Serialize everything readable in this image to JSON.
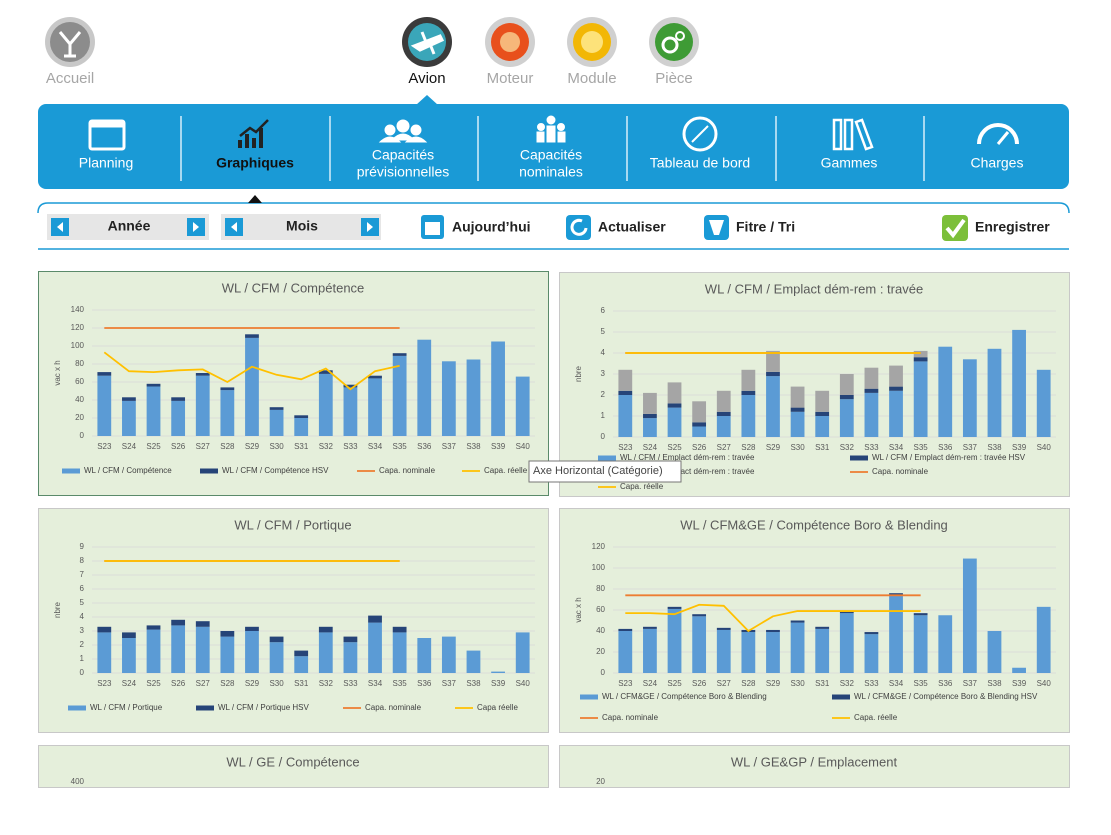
{
  "nav": [
    "Accueil",
    "Avion",
    "Moteur",
    "Module",
    "Pièce"
  ],
  "menu": [
    [
      "Planning"
    ],
    [
      "Graphiques"
    ],
    [
      "Capacités",
      "prévisionnelles"
    ],
    [
      "Capacités",
      "nominales"
    ],
    [
      "Tableau de bord"
    ],
    [
      "Gammes"
    ],
    [
      "Charges"
    ]
  ],
  "toolbar": {
    "year": "Année",
    "month": "Mois",
    "buttons": [
      "Aujourd’hui",
      "Actualiser",
      "Fitre / Tri",
      "Enregistrer"
    ]
  },
  "tooltip": "Axe Horizontal (Catégorie)",
  "chart_data": [
    {
      "type": "bar",
      "title": "WL / CFM / Compétence",
      "y_label": "vac x h",
      "categories": [
        "S23",
        "S24",
        "S25",
        "S26",
        "S27",
        "S28",
        "S29",
        "S30",
        "S31",
        "S32",
        "S33",
        "S34",
        "S35",
        "S36",
        "S37",
        "S38",
        "S39",
        "S40"
      ],
      "ylim": [
        0,
        140
      ],
      "yticks": [
        0,
        20,
        40,
        60,
        80,
        100,
        120,
        140
      ],
      "grid": true,
      "series": [
        {
          "name": "WL / CFM / Compétence",
          "kind": "bar",
          "color": "#5b9bd5",
          "values": [
            67,
            39,
            55,
            39,
            67,
            51,
            109,
            29,
            20,
            69,
            54,
            64,
            89,
            107,
            83,
            85,
            105,
            66
          ]
        },
        {
          "name": "WL / CFM / Compétence HSV",
          "kind": "bar",
          "color": "#264478",
          "values": [
            4,
            4,
            3,
            4,
            3,
            3,
            4,
            3,
            3,
            4,
            3,
            3,
            3,
            null,
            null,
            null,
            null,
            null
          ]
        },
        {
          "name": "Capa. nominale",
          "kind": "line",
          "color": "#ed7d31",
          "values": [
            120,
            120,
            120,
            120,
            120,
            120,
            120,
            120,
            120,
            120,
            120,
            120,
            120,
            null,
            null,
            null,
            null,
            null
          ]
        },
        {
          "name": "Capa. réelle",
          "kind": "line",
          "color": "#ffc000",
          "values": [
            93,
            72,
            71,
            73,
            74,
            60,
            77,
            68,
            63,
            75,
            52,
            72,
            78,
            null,
            null,
            null,
            null,
            null
          ]
        }
      ]
    },
    {
      "type": "bar",
      "title": "WL / CFM / Emplact dém-rem : travée",
      "y_label": "nbre",
      "categories": [
        "S23",
        "S24",
        "S25",
        "S26",
        "S27",
        "S28",
        "S29",
        "S30",
        "S31",
        "S32",
        "S33",
        "S34",
        "S35",
        "S36",
        "S37",
        "S38",
        "S39",
        "S40"
      ],
      "ylim": [
        0,
        6
      ],
      "yticks": [
        0,
        1,
        2,
        3,
        4,
        5,
        6
      ],
      "grid": true,
      "series": [
        {
          "name": "WL / CFM / Emplact dém-rem : travée",
          "kind": "bar",
          "color": "#5b9bd5",
          "values": [
            2.0,
            0.9,
            1.4,
            0.5,
            1.0,
            2.0,
            2.9,
            1.2,
            1.0,
            1.8,
            2.1,
            2.2,
            3.6,
            4.3,
            3.7,
            4.2,
            5.1,
            3.2
          ]
        },
        {
          "name": "WL / CFM / Emplact dém-rem : travée HSV",
          "kind": "bar",
          "color": "#264478",
          "values": [
            0.2,
            0.2,
            0.2,
            0.2,
            0.2,
            0.2,
            0.2,
            0.2,
            0.2,
            0.2,
            0.2,
            0.2,
            0.2,
            null,
            null,
            null,
            null,
            null
          ]
        },
        {
          "name": "WL / CFM / Emplact dém-rem : travée",
          "kind": "bar",
          "color": "#a5a5a5",
          "values": [
            1.0,
            1.0,
            1.0,
            1.0,
            1.0,
            1.0,
            1.0,
            1.0,
            1.0,
            1.0,
            1.0,
            1.0,
            0.3,
            null,
            null,
            null,
            null,
            null
          ]
        },
        {
          "name": "Capa. nominale",
          "kind": "line",
          "color": "#ed7d31",
          "values": [
            4,
            4,
            4,
            4,
            4,
            4,
            4,
            4,
            4,
            4,
            4,
            4,
            4,
            null,
            null,
            null,
            null,
            null
          ]
        },
        {
          "name": "Capa. réelle",
          "kind": "line",
          "color": "#ffc000",
          "values": [
            4,
            4,
            4,
            4,
            4,
            4,
            4,
            4,
            4,
            4,
            4,
            4,
            4,
            null,
            null,
            null,
            null,
            null
          ]
        }
      ]
    },
    {
      "type": "bar",
      "title": "WL / CFM / Portique",
      "y_label": "nbre",
      "categories": [
        "S23",
        "S24",
        "S25",
        "S26",
        "S27",
        "S28",
        "S29",
        "S30",
        "S31",
        "S32",
        "S33",
        "S34",
        "S35",
        "S36",
        "S37",
        "S38",
        "S39",
        "S40"
      ],
      "ylim": [
        0,
        9
      ],
      "yticks": [
        0,
        1,
        2,
        3,
        4,
        5,
        6,
        7,
        8,
        9
      ],
      "grid": true,
      "series": [
        {
          "name": "WL / CFM / Portique",
          "kind": "bar",
          "color": "#5b9bd5",
          "values": [
            2.9,
            2.5,
            3.1,
            3.4,
            3.3,
            2.6,
            3.0,
            2.2,
            1.2,
            2.9,
            2.2,
            3.6,
            2.9,
            2.5,
            2.6,
            1.6,
            0.1,
            2.9
          ]
        },
        {
          "name": "WL / CFM / Portique HSV",
          "kind": "bar",
          "color": "#264478",
          "values": [
            0.4,
            0.4,
            0.3,
            0.4,
            0.4,
            0.4,
            0.3,
            0.4,
            0.4,
            0.4,
            0.4,
            0.5,
            0.4,
            null,
            null,
            null,
            null,
            null
          ]
        },
        {
          "name": "Capa. nominale",
          "kind": "line",
          "color": "#ed7d31",
          "values": [
            8,
            8,
            8,
            8,
            8,
            8,
            8,
            8,
            8,
            8,
            8,
            8,
            8,
            null,
            null,
            null,
            null,
            null
          ]
        },
        {
          "name": "Capa réelle",
          "kind": "line",
          "color": "#ffc000",
          "values": [
            8,
            8,
            8,
            8,
            8,
            8,
            8,
            8,
            8,
            8,
            8,
            8,
            8,
            null,
            null,
            null,
            null,
            null
          ]
        }
      ]
    },
    {
      "type": "bar",
      "title": "WL / CFM&GE / Compétence Boro & Blending",
      "y_label": "vac x h",
      "categories": [
        "S23",
        "S24",
        "S25",
        "S26",
        "S27",
        "S28",
        "S29",
        "S30",
        "S31",
        "S32",
        "S33",
        "S34",
        "S35",
        "S36",
        "S37",
        "S38",
        "S39",
        "S40"
      ],
      "ylim": [
        0,
        120
      ],
      "yticks": [
        0,
        20,
        40,
        60,
        80,
        100,
        120
      ],
      "grid": true,
      "series": [
        {
          "name": "WL / CFM&GE / Compétence Boro & Blending",
          "kind": "bar",
          "color": "#5b9bd5",
          "values": [
            40,
            42,
            61,
            54,
            41,
            39,
            39,
            48,
            42,
            57,
            37,
            74,
            55,
            55,
            109,
            40,
            5,
            63
          ]
        },
        {
          "name": "WL / CFM&GE / Compétence Boro & Blending HSV",
          "kind": "bar",
          "color": "#264478",
          "values": [
            2,
            2,
            2,
            2,
            2,
            2,
            2,
            2,
            2,
            2,
            2,
            2,
            2,
            null,
            null,
            null,
            null,
            null
          ]
        },
        {
          "name": "Capa. nominale",
          "kind": "line",
          "color": "#ed7d31",
          "values": [
            74,
            74,
            74,
            74,
            74,
            74,
            74,
            74,
            74,
            74,
            74,
            74,
            74,
            null,
            null,
            null,
            null,
            null
          ]
        },
        {
          "name": "Capa. réelle",
          "kind": "line",
          "color": "#ffc000",
          "values": [
            57,
            57,
            56,
            65,
            64,
            40,
            54,
            59,
            59,
            59,
            59,
            59,
            59,
            null,
            null,
            null,
            null,
            null
          ]
        }
      ]
    },
    {
      "type": "bar",
      "title": "WL / GE / Compétence",
      "yticks": [
        400
      ]
    },
    {
      "type": "bar",
      "title": "WL / GE&GP / Emplacement",
      "yticks": [
        20
      ]
    }
  ]
}
